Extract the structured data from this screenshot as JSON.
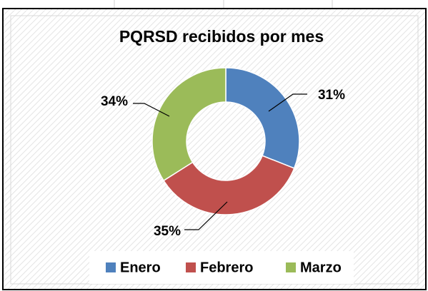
{
  "chart_data": {
    "type": "pie",
    "title": "PQRSD recibidos por mes",
    "categories": [
      "Enero",
      "Febrero",
      "Marzo"
    ],
    "values": [
      31,
      35,
      34
    ],
    "value_labels": [
      "31%",
      "35%",
      "34%"
    ],
    "colors": [
      "#4f81bd",
      "#c0504d",
      "#9bbb59"
    ],
    "legend": "bottom"
  }
}
